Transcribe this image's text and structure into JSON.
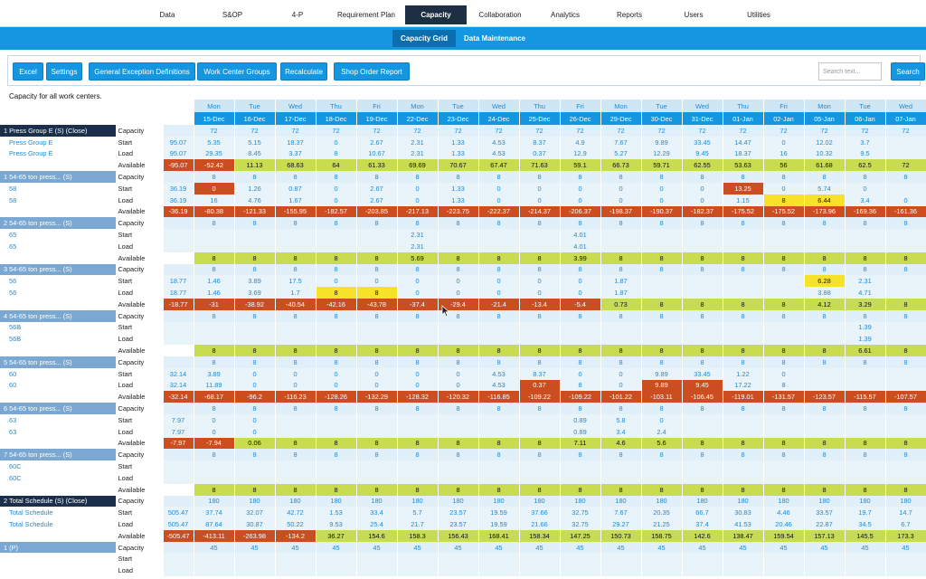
{
  "nav": {
    "items": [
      "Data",
      "S&OP",
      "4-P",
      "Requirement Plan",
      "Capacity",
      "Collaboration",
      "Analytics",
      "Reports",
      "Users",
      "Utilities"
    ],
    "active": "Capacity"
  },
  "subnav": {
    "items": [
      "Capacity Grid",
      "Data Maintenance"
    ],
    "active": "Capacity Grid"
  },
  "toolbar": {
    "buttons": [
      "Excel",
      "Settings",
      "General Exception Definitions",
      "Work Center Groups",
      "Recalculate",
      "Shop Order Report"
    ],
    "search_placeholder": "Search text...",
    "search_button": "Search"
  },
  "page_note": "Capacity for all work centers.",
  "colors": {
    "available_ok": "#c7dc4e",
    "available_short": "#cc4d1f",
    "warning": "#f7e22a",
    "accent": "#1596e0"
  },
  "grid": {
    "days": [
      "Mon",
      "Tue",
      "Wed",
      "Thu",
      "Fri",
      "Mon",
      "Tue",
      "Wed",
      "Thu",
      "Fri",
      "Mon",
      "Tue",
      "Wed",
      "Thu",
      "Fri",
      "Mon",
      "Tue",
      "Wed"
    ],
    "dates": [
      "15-Dec",
      "16-Dec",
      "17-Dec",
      "18-Dec",
      "19-Dec",
      "22-Dec",
      "23-Dec",
      "24-Dec",
      "25-Dec",
      "26-Dec",
      "29-Dec",
      "30-Dec",
      "31-Dec",
      "01-Jan",
      "02-Jan",
      "05-Jan",
      "06-Jan",
      "07-Jan"
    ],
    "rows": [
      {
        "kind": "cap",
        "label": "1 Press Group E (S) (Close)",
        "dark": true,
        "type": "Capacity",
        "total": "",
        "values": [
          "72",
          "72",
          "72",
          "72",
          "72",
          "72",
          "72",
          "72",
          "72",
          "72",
          "72",
          "72",
          "72",
          "72",
          "72",
          "72",
          "72",
          "72"
        ]
      },
      {
        "kind": "row",
        "label": "Press Group E",
        "type": "Start",
        "total": "95.07",
        "values": [
          "5.35",
          "5.15",
          "18.37",
          "0",
          "2.67",
          "2.31",
          "1.33",
          "4.53",
          "8.37",
          "4.9",
          "7.67",
          "9.89",
          "33.45",
          "14.47",
          "0",
          "12.02",
          "3.7",
          ""
        ]
      },
      {
        "kind": "row",
        "label": "Press Group E",
        "type": "Load",
        "total": "95.07",
        "values": [
          "29.35",
          "8.45",
          "3.37",
          "8",
          "10.67",
          "2.31",
          "1.33",
          "4.53",
          "0.37",
          "12.9",
          "5.27",
          "12.29",
          "9.45",
          "18.37",
          "16",
          "10.32",
          "9.5",
          ""
        ]
      },
      {
        "kind": "avail",
        "label": "",
        "type": "Available",
        "total": "-95.07",
        "values": [
          "-52.42",
          "11.13",
          "68.63",
          "64",
          "61.33",
          "69.69",
          "70.67",
          "67.47",
          "71.63",
          "59.1",
          "66.73",
          "59.71",
          "62.55",
          "53.63",
          "56",
          "61.68",
          "62.5",
          "72"
        ]
      },
      {
        "kind": "cap",
        "label": "1 54-65 ton press... (S)",
        "type": "Capacity",
        "total": "",
        "values": [
          "8",
          "8",
          "8",
          "8",
          "8",
          "8",
          "8",
          "8",
          "8",
          "8",
          "8",
          "8",
          "8",
          "8",
          "8",
          "8",
          "8",
          "8"
        ]
      },
      {
        "kind": "row",
        "label": "58",
        "type": "Start",
        "total": "36.19",
        "values": [
          "0",
          "1.26",
          "0.87",
          "0",
          "2.67",
          "0",
          "1.33",
          "0",
          "0",
          "0",
          "0",
          "0",
          "0",
          "13.25",
          "0",
          "5.74",
          "0",
          ""
        ]
      },
      {
        "kind": "row",
        "label": "58",
        "type": "Load",
        "total": "36.19",
        "values": [
          "16",
          "4.76",
          "1.67",
          "0",
          "2.67",
          "0",
          "1.33",
          "0",
          "0",
          "0",
          "0",
          "0",
          "0",
          "1.15",
          "8",
          "6.44",
          "3.4",
          "0"
        ]
      },
      {
        "kind": "avail",
        "label": "",
        "type": "Available",
        "total": "-36.19",
        "values": [
          "-80.38",
          "-121.33",
          "-155.95",
          "-182.57",
          "-203.85",
          "-217.13",
          "-223.75",
          "-222.37",
          "-214.37",
          "-206.37",
          "-198.37",
          "-190.37",
          "-182.37",
          "-175.52",
          "-175.52",
          "-173.96",
          "-169.36",
          "-161.36"
        ]
      },
      {
        "kind": "cap",
        "label": "2 54-65 ton press... (S)",
        "type": "Capacity",
        "total": "",
        "values": [
          "8",
          "8",
          "8",
          "8",
          "8",
          "8",
          "8",
          "8",
          "8",
          "8",
          "8",
          "8",
          "8",
          "8",
          "8",
          "8",
          "8",
          "8"
        ]
      },
      {
        "kind": "row",
        "label": "65",
        "type": "Start",
        "total": "",
        "values": [
          "",
          "",
          "",
          "",
          "",
          "2.31",
          "",
          "",
          "",
          "4.01",
          "",
          "",
          "",
          "",
          "",
          "",
          "",
          ""
        ]
      },
      {
        "kind": "row",
        "label": "65",
        "type": "Load",
        "total": "",
        "values": [
          "",
          "",
          "",
          "",
          "",
          "2.31",
          "",
          "",
          "",
          "4.01",
          "",
          "",
          "",
          "",
          "",
          "",
          "",
          ""
        ]
      },
      {
        "kind": "avail",
        "label": "",
        "type": "Available",
        "total": "",
        "values": [
          "8",
          "8",
          "8",
          "8",
          "8",
          "5.69",
          "8",
          "8",
          "8",
          "3.99",
          "8",
          "8",
          "8",
          "8",
          "8",
          "8",
          "8",
          "8"
        ]
      },
      {
        "kind": "cap",
        "label": "3 54-65 ton press... (S)",
        "type": "Capacity",
        "total": "",
        "values": [
          "8",
          "8",
          "8",
          "8",
          "8",
          "8",
          "8",
          "8",
          "8",
          "8",
          "8",
          "8",
          "8",
          "8",
          "8",
          "8",
          "8",
          "8"
        ]
      },
      {
        "kind": "row",
        "label": "56",
        "type": "Start",
        "total": "18.77",
        "values": [
          "1.46",
          "3.89",
          "17.5",
          "0",
          "0",
          "0",
          "0",
          "0",
          "0",
          "0",
          "1.87",
          "",
          "",
          "",
          "",
          "6.28",
          "2.31",
          ""
        ]
      },
      {
        "kind": "row",
        "label": "56",
        "type": "Load",
        "total": "18.77",
        "values": [
          "1.46",
          "3.69",
          "1.7",
          "8",
          "8",
          "0",
          "0",
          "0",
          "0",
          "0",
          "1.87",
          "",
          "",
          "",
          "",
          "3.88",
          "4.71",
          ""
        ]
      },
      {
        "kind": "avail",
        "label": "",
        "type": "Available",
        "total": "-18.77",
        "values": [
          "-31",
          "-38.92",
          "-40.54",
          "-42.16",
          "-43.78",
          "-37.4",
          "-29.4",
          "-21.4",
          "-13.4",
          "-5.4",
          "0.73",
          "8",
          "8",
          "8",
          "8",
          "4.12",
          "3.29",
          "8"
        ]
      },
      {
        "kind": "cap",
        "label": "4 54-65 ton press... (S)",
        "type": "Capacity",
        "total": "",
        "values": [
          "8",
          "8",
          "8",
          "8",
          "8",
          "8",
          "8",
          "8",
          "8",
          "8",
          "8",
          "8",
          "8",
          "8",
          "8",
          "8",
          "8",
          "8"
        ]
      },
      {
        "kind": "row",
        "label": "56B",
        "type": "Start",
        "total": "",
        "values": [
          "",
          "",
          "",
          "",
          "",
          "",
          "",
          "",
          "",
          "",
          "",
          "",
          "",
          "",
          "",
          "",
          "1.39",
          ""
        ]
      },
      {
        "kind": "row",
        "label": "56B",
        "type": "Load",
        "total": "",
        "values": [
          "",
          "",
          "",
          "",
          "",
          "",
          "",
          "",
          "",
          "",
          "",
          "",
          "",
          "",
          "",
          "",
          "1.39",
          ""
        ]
      },
      {
        "kind": "avail",
        "label": "",
        "type": "Available",
        "total": "",
        "values": [
          "8",
          "8",
          "8",
          "8",
          "8",
          "8",
          "8",
          "8",
          "8",
          "8",
          "8",
          "8",
          "8",
          "8",
          "8",
          "8",
          "6.61",
          "8"
        ]
      },
      {
        "kind": "cap",
        "label": "5 54-65 ton press... (S)",
        "type": "Capacity",
        "total": "",
        "values": [
          "8",
          "8",
          "8",
          "8",
          "8",
          "8",
          "8",
          "8",
          "8",
          "8",
          "8",
          "8",
          "8",
          "8",
          "8",
          "8",
          "8",
          "8"
        ]
      },
      {
        "kind": "row",
        "label": "60",
        "type": "Start",
        "total": "32.14",
        "values": [
          "3.89",
          "0",
          "0",
          "0",
          "0",
          "0",
          "0",
          "4.53",
          "8.37",
          "0",
          "0",
          "9.89",
          "33.45",
          "1.22",
          "0",
          "",
          "",
          ""
        ]
      },
      {
        "kind": "row",
        "label": "60",
        "type": "Load",
        "total": "32.14",
        "values": [
          "11.89",
          "0",
          "0",
          "0",
          "0",
          "0",
          "0",
          "4.53",
          "0.37",
          "8",
          "0",
          "9.89",
          "9.45",
          "17.22",
          "8",
          "",
          "",
          ""
        ]
      },
      {
        "kind": "avail",
        "label": "",
        "type": "Available",
        "total": "-32.14",
        "values": [
          "-68.17",
          "-96.2",
          "-116.23",
          "-128.26",
          "-132.29",
          "-128.32",
          "-120.32",
          "-116.85",
          "-109.22",
          "-109.22",
          "-101.22",
          "-103.11",
          "-106.45",
          "-119.01",
          "-131.57",
          "-123.57",
          "-115.57",
          "-107.57"
        ]
      },
      {
        "kind": "cap",
        "label": "6 54-65 ton press... (S)",
        "type": "Capacity",
        "total": "",
        "values": [
          "8",
          "8",
          "8",
          "8",
          "8",
          "8",
          "8",
          "8",
          "8",
          "8",
          "8",
          "8",
          "8",
          "8",
          "8",
          "8",
          "8",
          "8"
        ]
      },
      {
        "kind": "row",
        "label": "63",
        "type": "Start",
        "total": "7.97",
        "values": [
          "0",
          "0",
          "",
          "",
          "",
          "",
          "",
          "",
          "",
          "0.89",
          "5.8",
          "0",
          "",
          "",
          "",
          "",
          "",
          ""
        ]
      },
      {
        "kind": "row",
        "label": "63",
        "type": "Load",
        "total": "7.97",
        "values": [
          "0",
          "0",
          "",
          "",
          "",
          "",
          "",
          "",
          "",
          "0.89",
          "3.4",
          "2.4",
          "",
          "",
          "",
          "",
          "",
          ""
        ]
      },
      {
        "kind": "avail",
        "label": "",
        "type": "Available",
        "total": "-7.97",
        "values": [
          "-7.94",
          "0.06",
          "8",
          "8",
          "8",
          "8",
          "8",
          "8",
          "8",
          "7.11",
          "4.6",
          "5.6",
          "8",
          "8",
          "8",
          "8",
          "8",
          "8"
        ]
      },
      {
        "kind": "cap",
        "label": "7 54-65 ton press... (S)",
        "type": "Capacity",
        "total": "",
        "values": [
          "8",
          "8",
          "8",
          "8",
          "8",
          "8",
          "8",
          "8",
          "8",
          "8",
          "8",
          "8",
          "8",
          "8",
          "8",
          "8",
          "8",
          "8"
        ]
      },
      {
        "kind": "row",
        "label": "60C",
        "type": "Start",
        "total": "",
        "values": [
          "",
          "",
          "",
          "",
          "",
          "",
          "",
          "",
          "",
          "",
          "",
          "",
          "",
          "",
          "",
          "",
          "",
          ""
        ]
      },
      {
        "kind": "row",
        "label": "60C",
        "type": "Load",
        "total": "",
        "values": [
          "",
          "",
          "",
          "",
          "",
          "",
          "",
          "",
          "",
          "",
          "",
          "",
          "",
          "",
          "",
          "",
          "",
          ""
        ]
      },
      {
        "kind": "avail",
        "label": "",
        "type": "Available",
        "total": "",
        "values": [
          "8",
          "8",
          "8",
          "8",
          "8",
          "8",
          "8",
          "8",
          "8",
          "8",
          "8",
          "8",
          "8",
          "8",
          "8",
          "8",
          "8",
          "8"
        ]
      },
      {
        "kind": "cap",
        "label": "2 Total Schedule (S) (Close)",
        "dark": true,
        "type": "Capacity",
        "total": "",
        "values": [
          "180",
          "180",
          "180",
          "180",
          "180",
          "180",
          "180",
          "180",
          "180",
          "180",
          "180",
          "180",
          "180",
          "180",
          "180",
          "180",
          "180",
          "180"
        ]
      },
      {
        "kind": "row",
        "label": "Total Schedule",
        "type": "Start",
        "total": "505.47",
        "values": [
          "37.74",
          "32.07",
          "42.72",
          "1.53",
          "33.4",
          "5.7",
          "23.57",
          "19.59",
          "37.66",
          "32.75",
          "7.67",
          "20.35",
          "66.7",
          "30.83",
          "4.46",
          "33.57",
          "19.7",
          "14.7"
        ]
      },
      {
        "kind": "row",
        "label": "Total Schedule",
        "type": "Load",
        "total": "505.47",
        "values": [
          "87.64",
          "30.87",
          "50.22",
          "9.53",
          "25.4",
          "21.7",
          "23.57",
          "19.59",
          "21.66",
          "32.75",
          "29.27",
          "21.25",
          "37.4",
          "41.53",
          "20.46",
          "22.87",
          "34.5",
          "6.7"
        ]
      },
      {
        "kind": "avail",
        "label": "",
        "type": "Available",
        "total": "-505.47",
        "values": [
          "-413.11",
          "-263.98",
          "-134.2",
          "36.27",
          "154.6",
          "158.3",
          "156.43",
          "168.41",
          "158.34",
          "147.25",
          "150.73",
          "158.75",
          "142.6",
          "138.47",
          "159.54",
          "157.13",
          "145.5",
          "173.3"
        ]
      },
      {
        "kind": "cap",
        "label": "1 (P)",
        "type": "Capacity",
        "total": "",
        "values": [
          "45",
          "45",
          "45",
          "45",
          "45",
          "45",
          "45",
          "45",
          "45",
          "45",
          "45",
          "45",
          "45",
          "45",
          "45",
          "45",
          "45",
          "45"
        ]
      },
      {
        "kind": "row",
        "label": "",
        "type": "Start",
        "total": "",
        "values": [
          "",
          "",
          "",
          "",
          "",
          "",
          "",
          "",
          "",
          "",
          "",
          "",
          "",
          "",
          "",
          "",
          "",
          ""
        ]
      },
      {
        "kind": "row",
        "label": "",
        "type": "Load",
        "total": "",
        "values": [
          "",
          "",
          "",
          "",
          "",
          "",
          "",
          "",
          "",
          "",
          "",
          "",
          "",
          "",
          "",
          "",
          "",
          ""
        ]
      }
    ],
    "highlights": {
      "r": [
        "5-0",
        "14-3",
        "22-8",
        "22-11",
        "22-12",
        "23-0",
        "23-11",
        "23-12",
        "23-13",
        "5-13"
      ],
      "y": [
        "6-14",
        "6-15",
        "14-3",
        "14-4",
        "13-15",
        "23-9",
        "23-14"
      ]
    }
  }
}
